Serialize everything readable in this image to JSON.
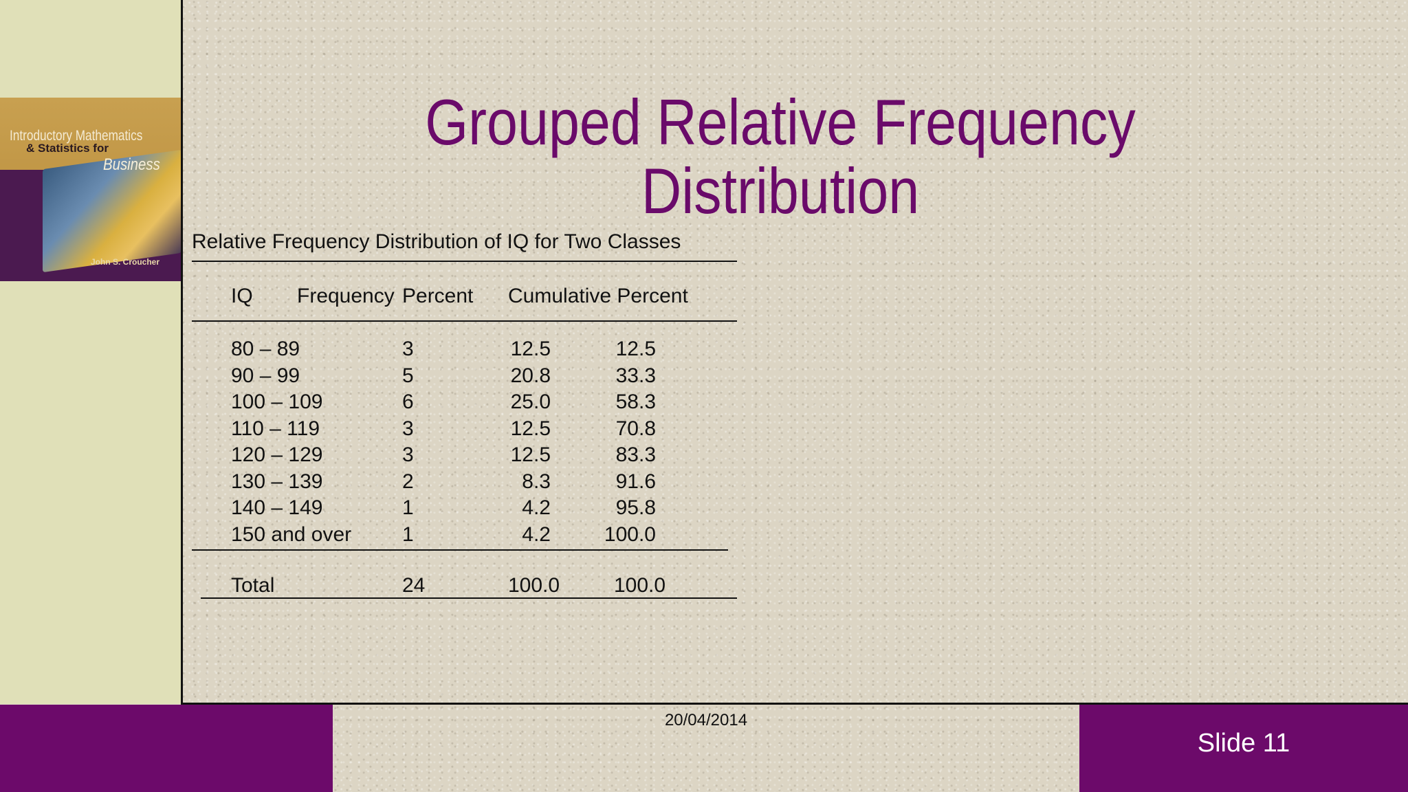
{
  "slide": {
    "title": "Grouped Relative Frequency Distribution",
    "date": "20/04/2014",
    "slide_number": "Slide 11"
  },
  "book_cover": {
    "line1": "Introductory Mathematics",
    "line2": "& Statistics for",
    "line3": "Business",
    "author": "John S. Croucher"
  },
  "table": {
    "caption": "Relative Frequency Distribution of IQ for Two Classes",
    "headers": [
      "IQ",
      "Frequency",
      "Percent",
      "Cumulative Percent"
    ],
    "rows": [
      [
        "80 – 89",
        "3",
        "12.5",
        "12.5"
      ],
      [
        "90 – 99",
        "5",
        "20.8",
        "33.3"
      ],
      [
        "100 – 109",
        "6",
        "25.0",
        "58.3"
      ],
      [
        "110 – 119",
        "3",
        "12.5",
        "70.8"
      ],
      [
        "120 – 129",
        "3",
        "12.5",
        "83.3"
      ],
      [
        "130 – 139",
        "2",
        "8.3",
        "91.6"
      ],
      [
        "140 – 149",
        "1",
        "4.2",
        "95.8"
      ],
      [
        "150 and over",
        "1",
        "4.2",
        "100.0"
      ]
    ],
    "total": [
      "Total",
      "24",
      "100.0",
      "100.0"
    ]
  },
  "colors": {
    "accent_purple": "#6c0a6a",
    "left_band": "#e0e0b8"
  }
}
